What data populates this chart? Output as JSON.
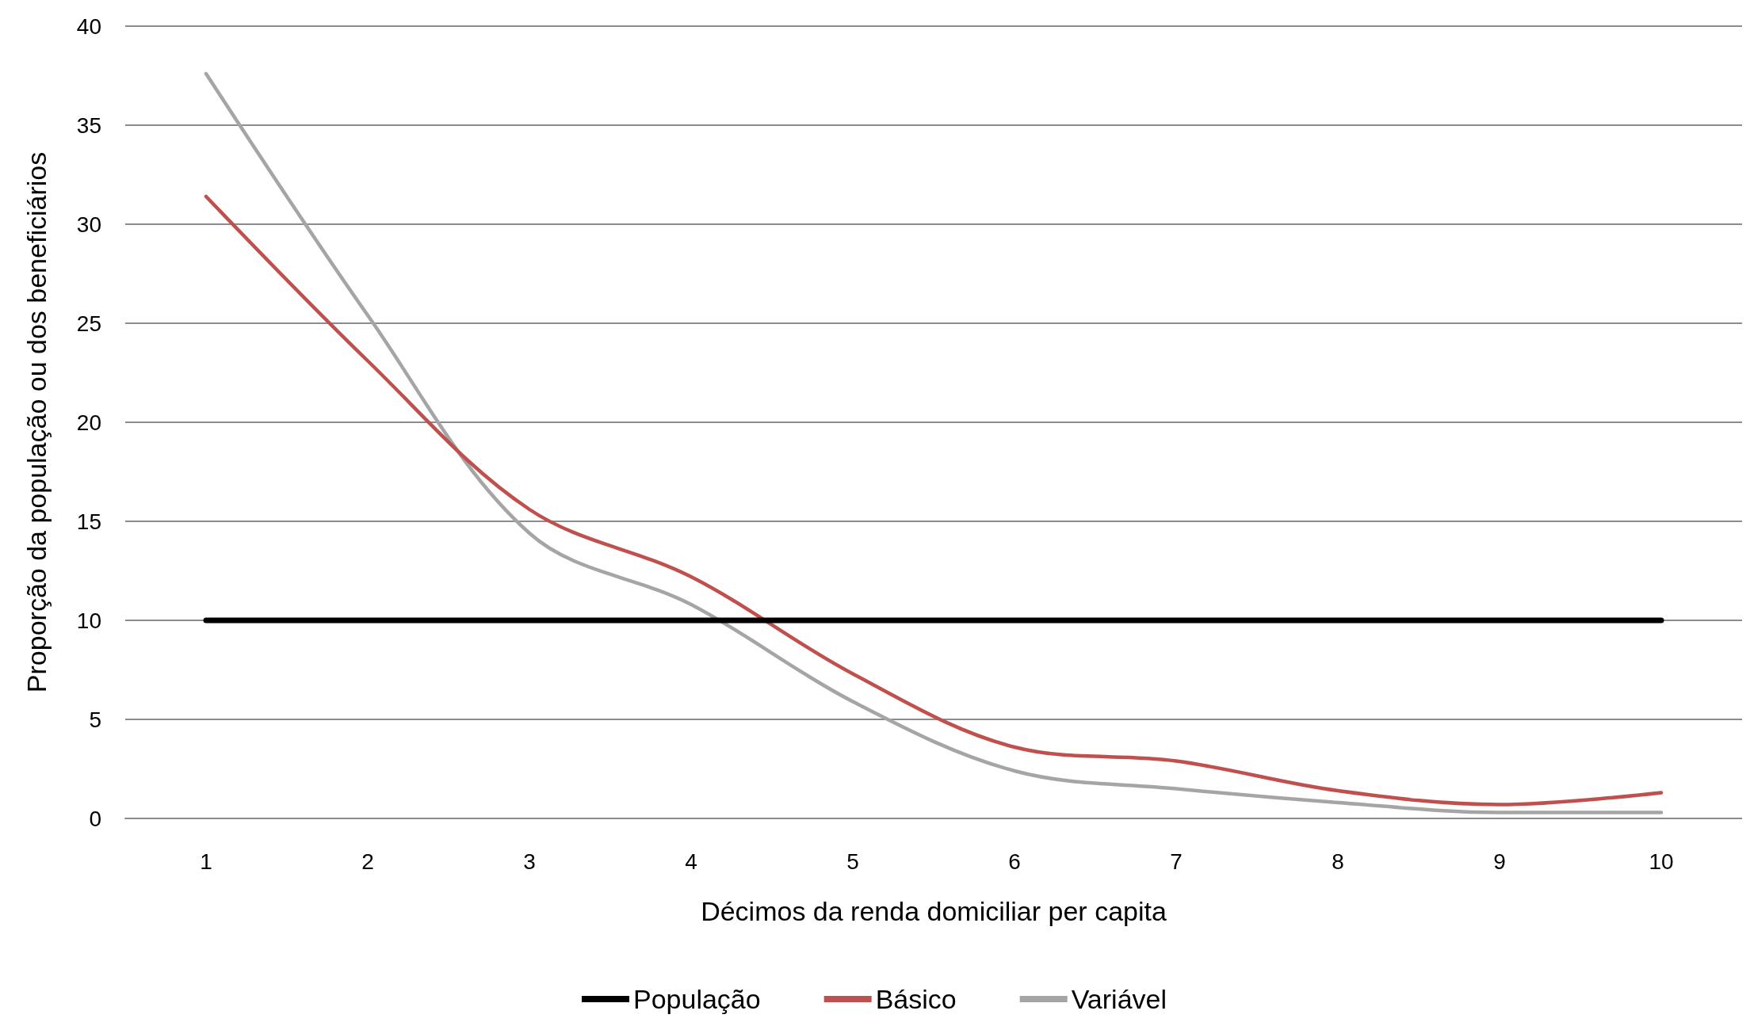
{
  "chart_data": {
    "type": "line",
    "xlabel": "Décimos da renda domiciliar per capita",
    "ylabel": "Proporção da população ou dos beneficiários",
    "categories": [
      "1",
      "2",
      "3",
      "4",
      "5",
      "6",
      "7",
      "8",
      "9",
      "10"
    ],
    "series": [
      {
        "name": "População",
        "color": "#000000",
        "values": [
          10,
          10,
          10,
          10,
          10,
          10,
          10,
          10,
          10,
          10
        ]
      },
      {
        "name": "Básico",
        "color": "#c0504d",
        "values": [
          31.4,
          23.1,
          15.6,
          12.2,
          7.3,
          3.6,
          2.9,
          1.4,
          0.7,
          1.3
        ]
      },
      {
        "name": "Variável",
        "color": "#a5a5a5",
        "values": [
          37.6,
          25.4,
          14.4,
          10.8,
          5.9,
          2.4,
          1.5,
          0.8,
          0.3,
          0.3
        ]
      }
    ],
    "ylim": [
      0,
      40
    ],
    "yticks": [
      0,
      5,
      10,
      15,
      20,
      25,
      30,
      35,
      40
    ],
    "grid": "y",
    "legend": "bottom",
    "marker": "none",
    "line_style": "solid"
  }
}
